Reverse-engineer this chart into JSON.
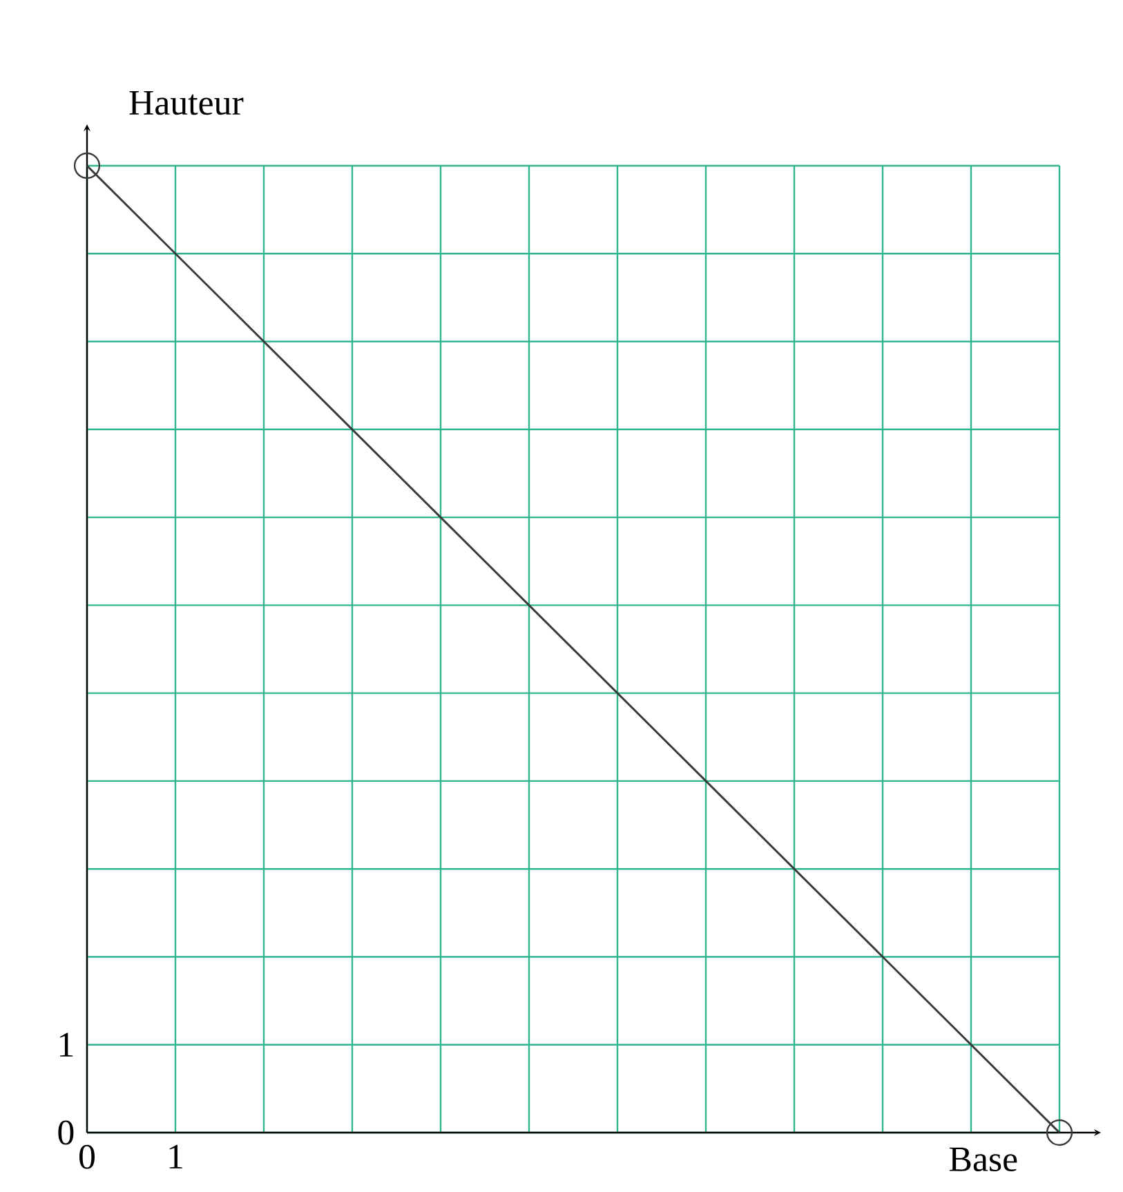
{
  "chart_data": {
    "type": "line",
    "xlabel": "Base",
    "ylabel": "Hauteur",
    "x": [
      0,
      11
    ],
    "values": [
      11,
      0
    ],
    "color": "#3a3a3a",
    "marker": "circle",
    "line_style": "solid",
    "xlim": [
      0,
      11
    ],
    "ylim": [
      0,
      11
    ],
    "xticks": [
      0,
      1,
      {
        "value": 2,
        "label": null
      },
      {
        "value": 3,
        "label": null
      },
      {
        "value": 4,
        "label": null
      },
      {
        "value": 5,
        "label": null
      },
      {
        "value": 6,
        "label": null
      },
      {
        "value": 7,
        "label": null
      },
      {
        "value": 8,
        "label": null
      },
      {
        "value": 9,
        "label": null
      },
      {
        "value": 10,
        "label": null
      },
      {
        "value": 11,
        "label": null
      }
    ],
    "yticks": [
      0,
      1,
      {
        "value": 2,
        "label": null
      },
      {
        "value": 3,
        "label": null
      },
      {
        "value": 4,
        "label": null
      },
      {
        "value": 5,
        "label": null
      },
      {
        "value": 6,
        "label": null
      },
      {
        "value": 7,
        "label": null
      },
      {
        "value": 8,
        "label": null
      },
      {
        "value": 9,
        "label": null
      },
      {
        "value": 10,
        "label": null
      },
      {
        "value": 11,
        "label": null
      }
    ],
    "grid": true
  }
}
